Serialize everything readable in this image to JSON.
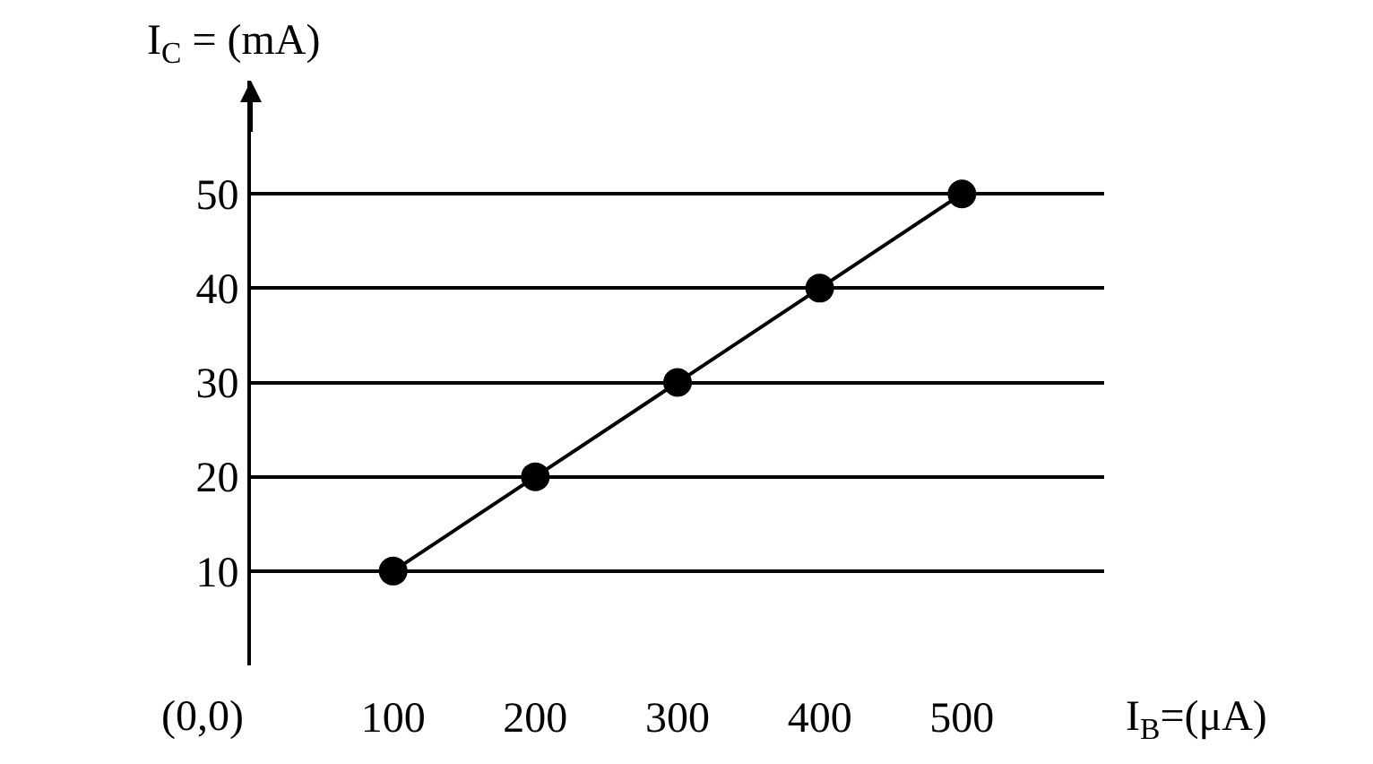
{
  "chart_data": {
    "type": "line",
    "x": [
      100,
      200,
      300,
      400,
      500
    ],
    "values": [
      10,
      20,
      30,
      40,
      50
    ],
    "color": "#000000",
    "marker": "circle",
    "line_style": "solid",
    "xlim": [
      0,
      600
    ],
    "ylim": [
      0,
      62
    ],
    "xticks": [
      100,
      200,
      300,
      400,
      500
    ],
    "yticks": [
      10,
      20,
      30,
      40,
      50
    ],
    "grid": "y",
    "xlabel": "I$_{B}$=(μA)",
    "ylabel": "I$_{C}$ = (mA)",
    "annotations": [
      "(0,0)"
    ]
  }
}
